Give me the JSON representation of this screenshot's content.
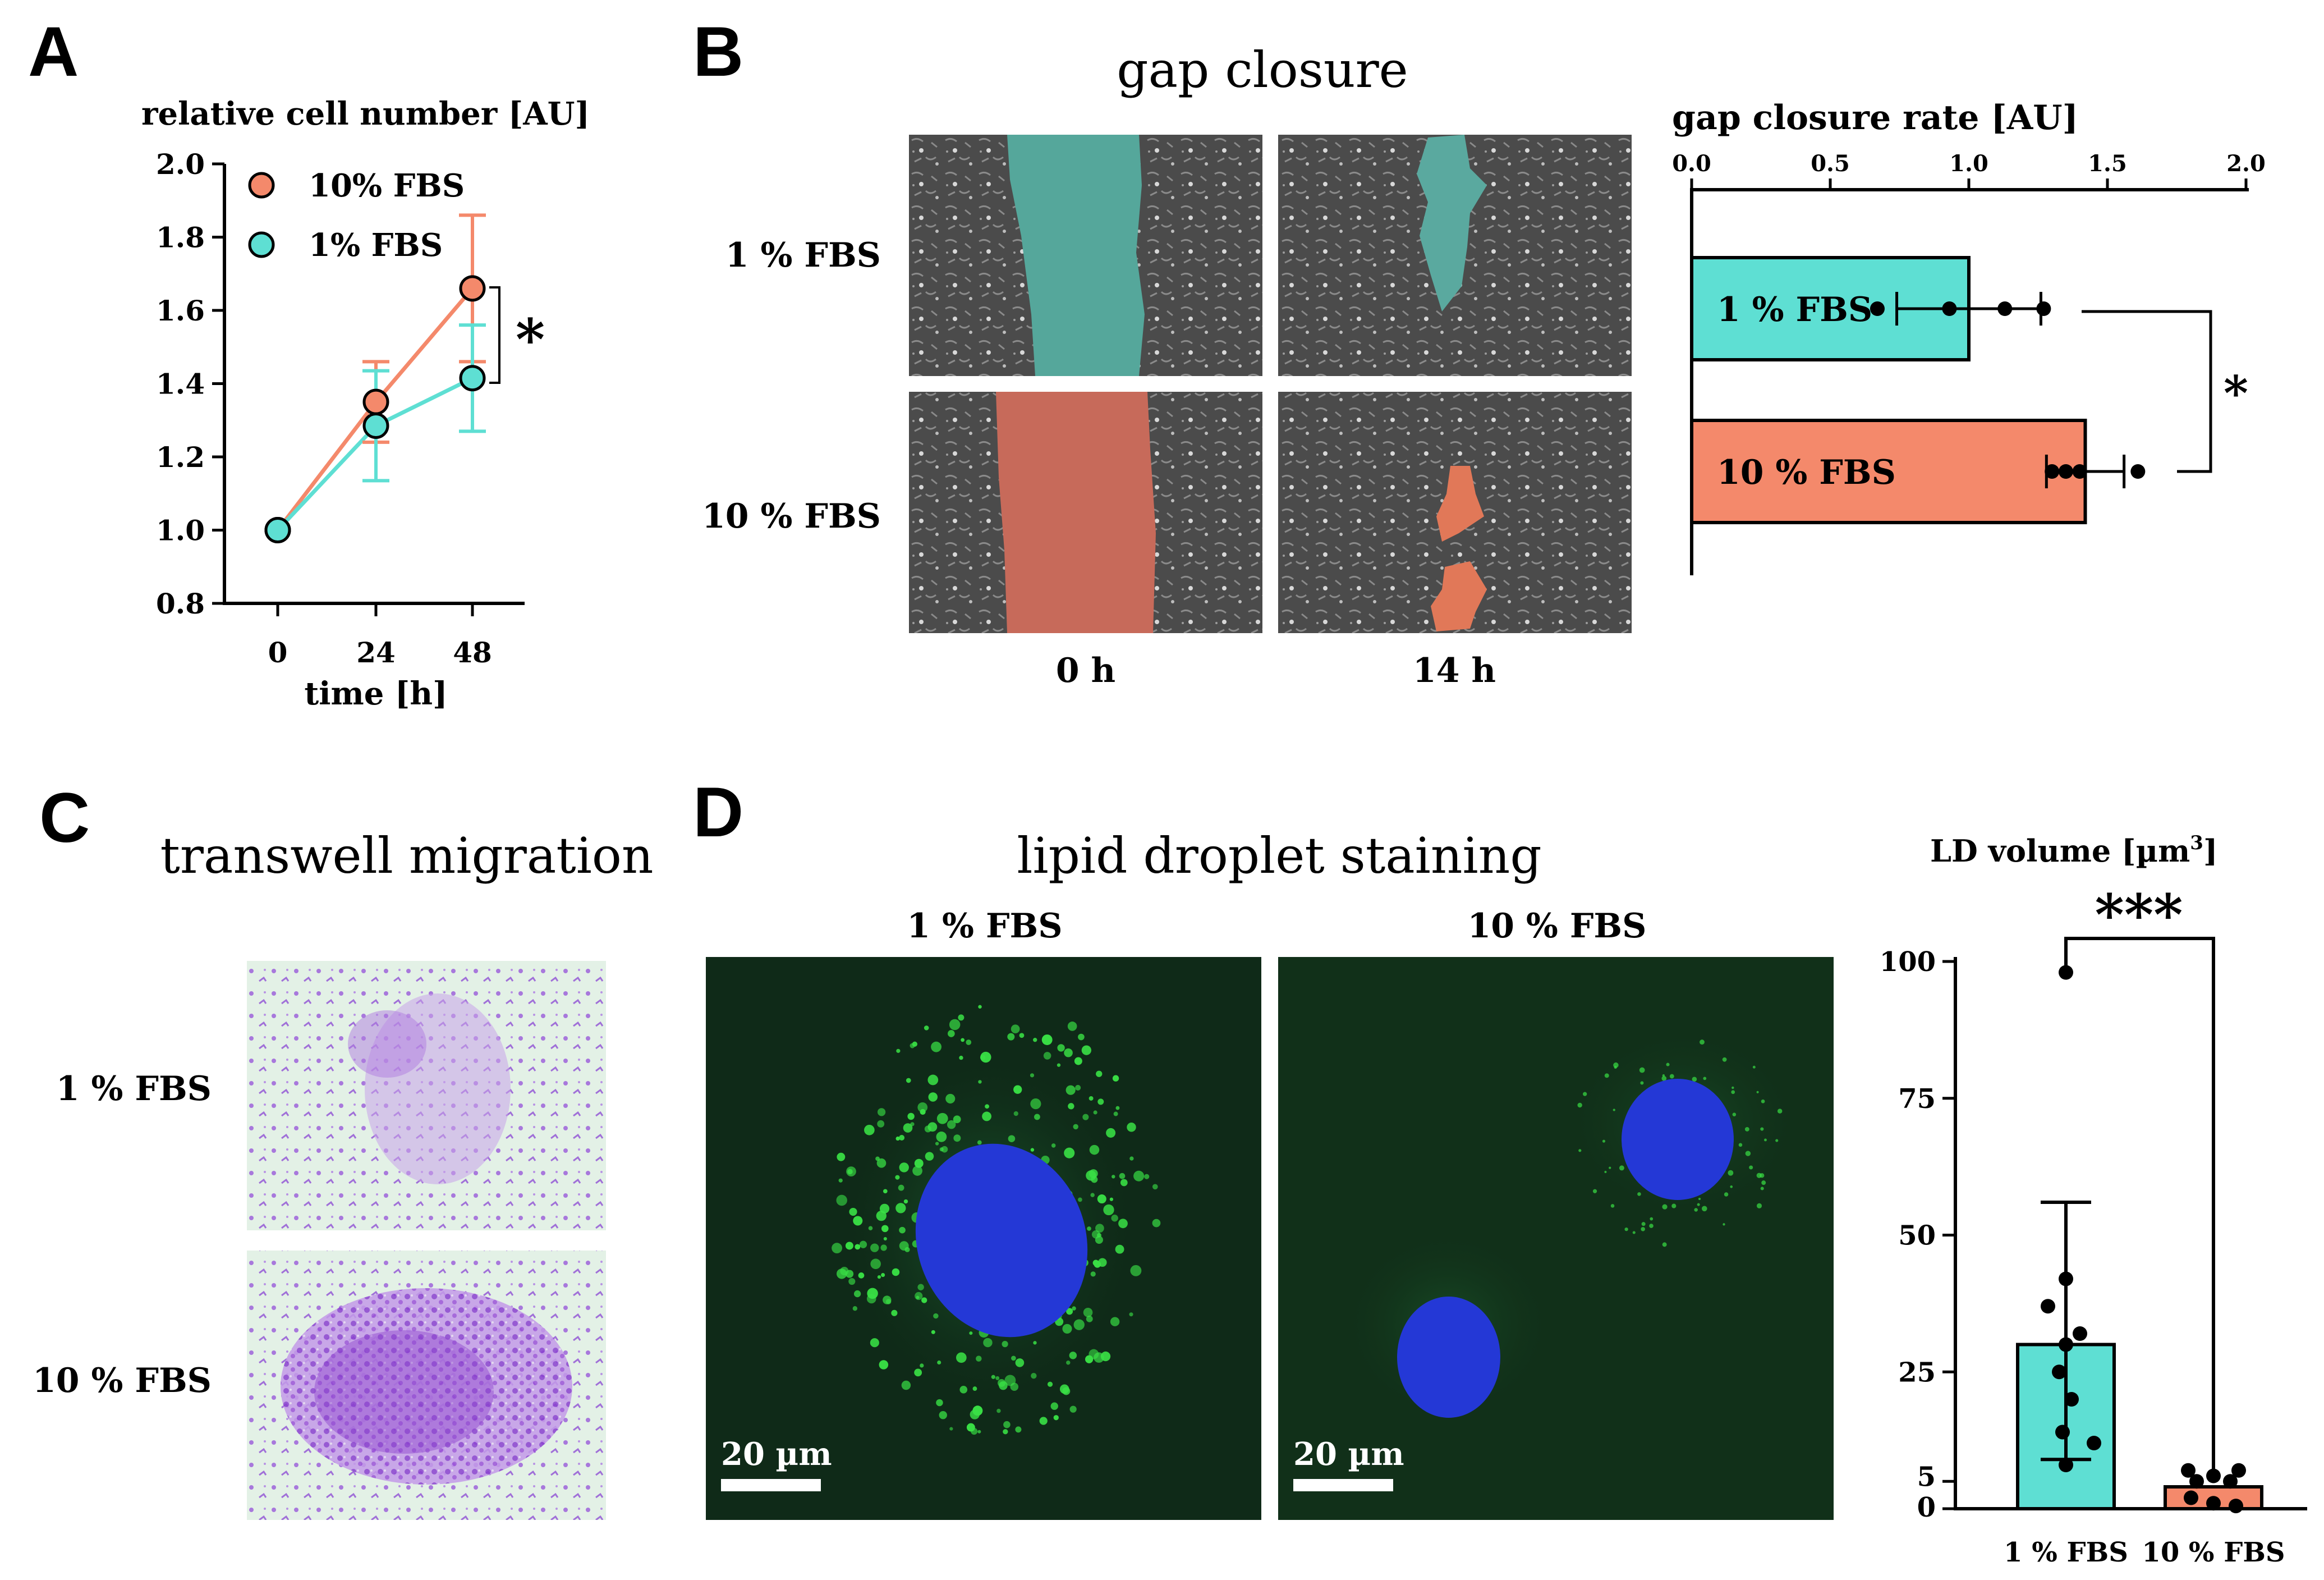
{
  "colors": {
    "fbs10": "#f4896b",
    "fbs1": "#5edfd3",
    "fbs10_overlay": "#c76a5a",
    "fbs1_overlay": "#55a79b",
    "micro_bg": "#4a4a4a",
    "transwell_bg": "#dff0e2",
    "stain": "#9a58d8",
    "confocal_bg": "#0f2a18",
    "nucleus": "#2438d6",
    "lipid": "#39e045"
  },
  "panels": {
    "A": "A",
    "B": "B",
    "C": "C",
    "D": "D"
  },
  "panel_b": {
    "title": "gap closure",
    "row_labels": [
      "1 % FBS",
      "10 % FBS"
    ],
    "col_labels": [
      "0 h",
      "14 h"
    ]
  },
  "panel_c": {
    "title": "transwell migration",
    "row_labels": [
      "1 % FBS",
      "10 % FBS"
    ]
  },
  "panel_d": {
    "title": "lipid droplet staining",
    "col_labels": [
      "1 % FBS",
      "10 % FBS"
    ],
    "scale_bar": "20 µm"
  },
  "chart_data": [
    {
      "id": "A",
      "type": "line",
      "title": "relative cell number [AU]",
      "xlabel": "time [h]",
      "ylabel": "",
      "x": [
        0,
        24,
        48
      ],
      "xticks": [
        "0",
        "24",
        "48"
      ],
      "ylim": [
        0.8,
        2.0
      ],
      "yticks": [
        "0.8",
        "1.0",
        "1.2",
        "1.4",
        "1.6",
        "1.8",
        "2.0"
      ],
      "series": [
        {
          "name": "10% FBS",
          "values": [
            1.0,
            1.35,
            1.66
          ],
          "errors": [
            0,
            0.11,
            0.2
          ]
        },
        {
          "name": "1% FBS",
          "values": [
            1.0,
            1.285,
            1.415
          ],
          "errors": [
            0,
            0.15,
            0.145
          ]
        }
      ],
      "significance": "*"
    },
    {
      "id": "B",
      "type": "bar",
      "orientation": "horizontal",
      "title": "gap closure rate [AU]",
      "xlim": [
        0,
        2.0
      ],
      "xticks": [
        "0.0",
        "0.5",
        "1.0",
        "1.5",
        "2.0"
      ],
      "categories": [
        "1 % FBS",
        "10 % FBS"
      ],
      "values": [
        1.0,
        1.42
      ],
      "errors": [
        0.26,
        0.14
      ],
      "points": [
        [
          0.67,
          0.93,
          1.13,
          1.27
        ],
        [
          1.3,
          1.35,
          1.4,
          1.61
        ]
      ],
      "significance": "*"
    },
    {
      "id": "D",
      "type": "bar",
      "title": "LD volume [µm",
      "title_sup": "3",
      "title_end": "]",
      "ylim": [
        0,
        100
      ],
      "yticks": [
        "0",
        "5",
        "25",
        "50",
        "75",
        "100"
      ],
      "categories": [
        "1 % FBS",
        "10 % FBS"
      ],
      "values": [
        30,
        4
      ],
      "errors_up": [
        26,
        0
      ],
      "errors_low": [
        21,
        0
      ],
      "points": [
        [
          98,
          42,
          37,
          32,
          30,
          25,
          20,
          14,
          12,
          8
        ],
        [
          7,
          7,
          6,
          5,
          5,
          2,
          1,
          0.5
        ]
      ],
      "significance": "***"
    }
  ]
}
